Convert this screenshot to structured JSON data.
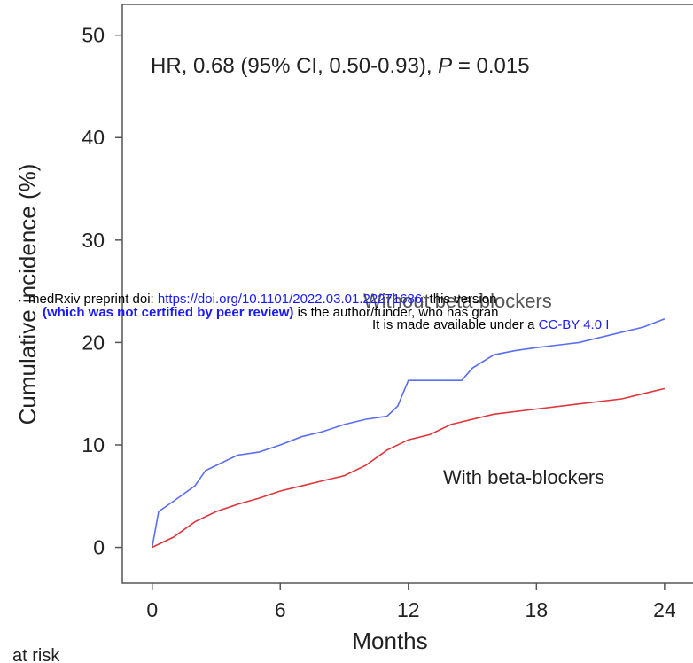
{
  "chart_data": {
    "type": "line",
    "annotation": "HR, 0.68 (95% CI, 0.50-0.93), ",
    "annotation_p": "P",
    "annotation_tail": " = 0.015",
    "xlabel": "Months",
    "ylabel": "Cumulative incidence (%)",
    "footer": "at risk",
    "xlim": [
      -1.4,
      25.5
    ],
    "ylim": [
      -3.5,
      53
    ],
    "xticks": [
      0,
      6,
      12,
      18,
      24
    ],
    "yticks": [
      0,
      10,
      20,
      30,
      40,
      50
    ],
    "series": [
      {
        "name": "Without beta-blockers",
        "color": "#5a6ef0",
        "x": [
          0,
          0.3,
          1,
          2,
          2.5,
          3,
          4,
          5,
          6,
          7,
          8,
          9,
          10,
          11,
          11.5,
          12,
          13,
          14.5,
          15,
          16,
          17,
          18,
          20,
          22,
          23,
          24
        ],
        "values": [
          0,
          3.5,
          4.5,
          6,
          7.5,
          8,
          9,
          9.3,
          10,
          10.8,
          11.3,
          12,
          12.5,
          12.8,
          13.8,
          16.3,
          16.3,
          16.3,
          17.5,
          18.8,
          19.2,
          19.5,
          20,
          21,
          21.5,
          22.3
        ]
      },
      {
        "name": "With beta-blockers",
        "color": "#e0353b",
        "x": [
          0,
          1,
          2,
          3,
          4,
          5,
          6,
          7,
          8,
          9,
          10,
          11,
          12,
          13,
          14,
          16,
          18,
          20,
          22,
          23,
          24
        ],
        "values": [
          0,
          1,
          2.5,
          3.5,
          4.2,
          4.8,
          5.5,
          6,
          6.5,
          7,
          8,
          9.5,
          10.5,
          11,
          12,
          13,
          13.5,
          14,
          14.5,
          15,
          15.5
        ]
      }
    ]
  },
  "overlay": {
    "line1": [
      "medRxiv preprint doi: ",
      "https://doi.org/10.1101/2022.03.01.22271686",
      "; this version"
    ],
    "line2": [
      "(which was not certified by peer review)",
      " is the author/funder, who has gran"
    ],
    "line3": [
      "It is made available under a ",
      "CC-BY 4.0 I"
    ]
  }
}
